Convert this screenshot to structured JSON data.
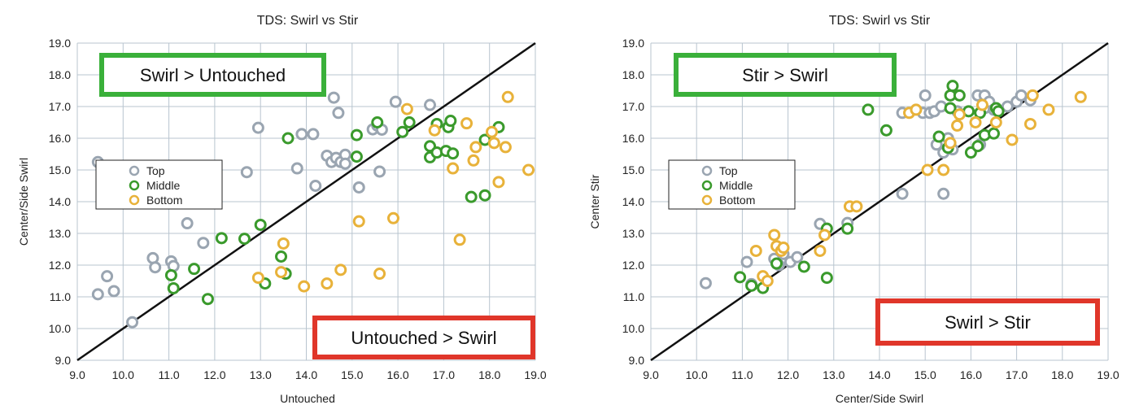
{
  "colors": {
    "top": "#9aa5b1",
    "middle": "#3a9a2c",
    "bottom": "#e8b23a",
    "grid": "#b8c4cf",
    "green_box": "#3ab03a",
    "red_box": "#e0362a",
    "diagonal": "#111111"
  },
  "legend": {
    "top": "Top",
    "middle": "Middle",
    "bottom": "Bottom"
  },
  "chart_data": [
    {
      "type": "scatter",
      "title": "TDS: Swirl vs Stir",
      "xlabel": "Untouched",
      "ylabel": "Center/Side Swirl",
      "xlim": [
        9.0,
        19.0
      ],
      "ylim": [
        9.0,
        19.0
      ],
      "xticks": [
        "9.0",
        "10.0",
        "11.0",
        "12.0",
        "13.0",
        "14.0",
        "15.0",
        "16.0",
        "17.0",
        "18.0",
        "19.0"
      ],
      "yticks": [
        "9.0",
        "10.0",
        "11.0",
        "12.0",
        "13.0",
        "14.0",
        "15.0",
        "16.0",
        "17.0",
        "18.0",
        "19.0"
      ],
      "grid": true,
      "reference_line": "y = x",
      "legend_position": "left-middle",
      "annotations": [
        {
          "text": "Swirl > Untouched",
          "color": "green",
          "position": "top-left"
        },
        {
          "text": "Untouched > Swirl",
          "color": "red",
          "position": "bottom-right"
        }
      ],
      "series": [
        {
          "name": "Top",
          "points": [
            [
              9.45,
              15.25
            ],
            [
              9.45,
              11.08
            ],
            [
              9.65,
              11.65
            ],
            [
              9.8,
              11.18
            ],
            [
              10.2,
              10.2
            ],
            [
              10.65,
              12.22
            ],
            [
              10.7,
              11.93
            ],
            [
              11.05,
              12.12
            ],
            [
              11.1,
              11.97
            ],
            [
              11.4,
              13.32
            ],
            [
              11.75,
              12.7
            ],
            [
              12.7,
              14.93
            ],
            [
              12.95,
              16.33
            ],
            [
              13.8,
              15.05
            ],
            [
              13.9,
              16.13
            ],
            [
              14.15,
              16.13
            ],
            [
              14.2,
              14.5
            ],
            [
              14.45,
              15.45
            ],
            [
              14.55,
              15.25
            ],
            [
              14.6,
              17.28
            ],
            [
              14.65,
              15.38
            ],
            [
              14.7,
              16.8
            ],
            [
              14.75,
              15.25
            ],
            [
              14.85,
              15.48
            ],
            [
              14.85,
              15.2
            ],
            [
              15.15,
              14.45
            ],
            [
              15.45,
              16.28
            ],
            [
              15.55,
              16.4
            ],
            [
              15.65,
              16.27
            ],
            [
              15.6,
              14.95
            ],
            [
              15.95,
              17.15
            ],
            [
              16.7,
              17.05
            ]
          ]
        },
        {
          "name": "Middle",
          "points": [
            [
              11.05,
              11.68
            ],
            [
              11.1,
              11.27
            ],
            [
              11.55,
              11.88
            ],
            [
              11.85,
              10.93
            ],
            [
              12.15,
              12.85
            ],
            [
              12.65,
              12.83
            ],
            [
              13.0,
              13.27
            ],
            [
              13.1,
              11.42
            ],
            [
              13.45,
              12.27
            ],
            [
              13.55,
              11.73
            ],
            [
              13.6,
              16.0
            ],
            [
              15.1,
              16.1
            ],
            [
              15.1,
              15.42
            ],
            [
              15.55,
              16.5
            ],
            [
              16.1,
              16.2
            ],
            [
              16.25,
              16.5
            ],
            [
              16.7,
              15.75
            ],
            [
              16.7,
              15.4
            ],
            [
              16.85,
              16.45
            ],
            [
              16.85,
              15.55
            ],
            [
              17.05,
              15.6
            ],
            [
              17.1,
              16.35
            ],
            [
              17.15,
              16.55
            ],
            [
              17.2,
              15.52
            ],
            [
              17.6,
              14.15
            ],
            [
              17.9,
              14.2
            ],
            [
              17.9,
              15.95
            ],
            [
              18.2,
              16.35
            ]
          ]
        },
        {
          "name": "Bottom",
          "points": [
            [
              12.95,
              11.6
            ],
            [
              13.45,
              11.78
            ],
            [
              13.5,
              12.68
            ],
            [
              13.95,
              11.33
            ],
            [
              14.45,
              11.42
            ],
            [
              14.75,
              11.85
            ],
            [
              15.15,
              13.38
            ],
            [
              15.6,
              11.73
            ],
            [
              15.9,
              13.48
            ],
            [
              16.2,
              16.92
            ],
            [
              16.8,
              16.25
            ],
            [
              17.2,
              15.05
            ],
            [
              17.35,
              12.8
            ],
            [
              17.5,
              16.47
            ],
            [
              17.65,
              15.3
            ],
            [
              17.7,
              15.72
            ],
            [
              18.05,
              16.2
            ],
            [
              18.1,
              15.85
            ],
            [
              18.2,
              14.62
            ],
            [
              18.35,
              15.72
            ],
            [
              18.4,
              17.3
            ],
            [
              18.85,
              15.0
            ]
          ]
        }
      ]
    },
    {
      "type": "scatter",
      "title": "TDS: Swirl vs Stir",
      "xlabel": "Center/Side Swirl",
      "ylabel": "Center Stir",
      "xlim": [
        9.0,
        19.0
      ],
      "ylim": [
        9.0,
        19.0
      ],
      "xticks": [
        "9.0",
        "10.0",
        "11.0",
        "12.0",
        "13.0",
        "14.0",
        "15.0",
        "16.0",
        "17.0",
        "18.0",
        "19.0"
      ],
      "yticks": [
        "9.0",
        "10.0",
        "11.0",
        "12.0",
        "13.0",
        "14.0",
        "15.0",
        "16.0",
        "17.0",
        "18.0",
        "19.0"
      ],
      "grid": true,
      "reference_line": "y = x",
      "legend_position": "left-middle",
      "annotations": [
        {
          "text": "Stir > Swirl",
          "color": "green",
          "position": "top-left"
        },
        {
          "text": "Swirl > Stir",
          "color": "red",
          "position": "bottom-right"
        }
      ],
      "series": [
        {
          "name": "Top",
          "points": [
            [
              10.2,
              11.43
            ],
            [
              11.1,
              12.1
            ],
            [
              11.2,
              11.4
            ],
            [
              11.7,
              12.2
            ],
            [
              11.8,
              12.0
            ],
            [
              11.9,
              12.35
            ],
            [
              12.05,
              12.1
            ],
            [
              12.2,
              12.25
            ],
            [
              12.7,
              13.3
            ],
            [
              13.3,
              13.33
            ],
            [
              14.5,
              14.25
            ],
            [
              14.5,
              16.8
            ],
            [
              14.95,
              16.8
            ],
            [
              15.0,
              17.35
            ],
            [
              15.1,
              16.8
            ],
            [
              15.2,
              16.85
            ],
            [
              15.25,
              15.8
            ],
            [
              15.35,
              17.0
            ],
            [
              15.4,
              14.25
            ],
            [
              15.4,
              15.55
            ],
            [
              15.5,
              15.7
            ],
            [
              15.5,
              16.0
            ],
            [
              15.6,
              15.65
            ],
            [
              15.7,
              16.85
            ],
            [
              16.15,
              17.35
            ],
            [
              16.2,
              15.8
            ],
            [
              16.3,
              17.35
            ],
            [
              16.3,
              16.95
            ],
            [
              16.4,
              17.15
            ],
            [
              16.5,
              16.9
            ],
            [
              16.8,
              17.0
            ],
            [
              17.0,
              17.15
            ],
            [
              17.1,
              17.35
            ],
            [
              17.3,
              17.2
            ]
          ]
        },
        {
          "name": "Middle",
          "points": [
            [
              10.95,
              11.62
            ],
            [
              11.2,
              11.35
            ],
            [
              11.45,
              11.28
            ],
            [
              11.75,
              12.05
            ],
            [
              12.35,
              11.95
            ],
            [
              12.85,
              11.6
            ],
            [
              12.85,
              13.15
            ],
            [
              13.3,
              13.15
            ],
            [
              13.75,
              16.9
            ],
            [
              14.15,
              16.25
            ],
            [
              15.3,
              16.05
            ],
            [
              15.5,
              15.7
            ],
            [
              15.55,
              17.35
            ],
            [
              15.55,
              16.95
            ],
            [
              15.6,
              17.65
            ],
            [
              15.75,
              17.35
            ],
            [
              15.95,
              16.85
            ],
            [
              16.0,
              15.55
            ],
            [
              16.15,
              15.75
            ],
            [
              16.2,
              16.8
            ],
            [
              16.3,
              16.1
            ],
            [
              16.5,
              16.15
            ],
            [
              16.55,
              16.95
            ],
            [
              16.6,
              16.85
            ]
          ]
        },
        {
          "name": "Bottom",
          "points": [
            [
              11.3,
              12.45
            ],
            [
              11.45,
              11.65
            ],
            [
              11.55,
              11.5
            ],
            [
              11.7,
              12.95
            ],
            [
              11.75,
              12.6
            ],
            [
              11.85,
              12.45
            ],
            [
              11.9,
              12.55
            ],
            [
              12.7,
              12.45
            ],
            [
              12.8,
              12.95
            ],
            [
              13.35,
              13.85
            ],
            [
              13.5,
              13.85
            ],
            [
              14.65,
              16.8
            ],
            [
              14.8,
              16.9
            ],
            [
              15.05,
              15.0
            ],
            [
              15.4,
              15.0
            ],
            [
              15.55,
              15.85
            ],
            [
              15.7,
              16.4
            ],
            [
              15.75,
              16.75
            ],
            [
              16.1,
              16.5
            ],
            [
              16.25,
              17.05
            ],
            [
              16.55,
              16.5
            ],
            [
              16.9,
              15.95
            ],
            [
              17.3,
              16.45
            ],
            [
              17.35,
              17.35
            ],
            [
              17.7,
              16.9
            ],
            [
              18.4,
              17.3
            ]
          ]
        }
      ]
    }
  ]
}
